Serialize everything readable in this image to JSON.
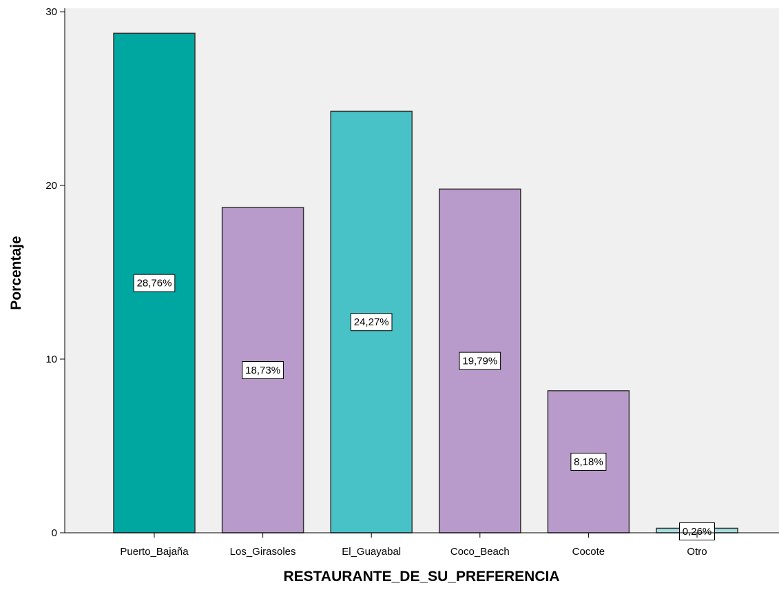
{
  "chart_data": {
    "type": "bar",
    "title": "",
    "xlabel": "RESTAURANTE_DE_SU_PREFERENCIA",
    "ylabel": "Porcentaje",
    "ylim": [
      0,
      30.2
    ],
    "yticks": [
      0,
      10,
      20,
      30
    ],
    "ytick_labels": [
      "0",
      "10",
      "20",
      "30"
    ],
    "grid": false,
    "legend": "none",
    "categories": [
      "Puerto_Bajaña",
      "Los_Girasoles",
      "El_Guayabal",
      "Coco_Beach",
      "Cocote",
      "Otro"
    ],
    "values": [
      28.76,
      18.73,
      24.27,
      19.79,
      8.18,
      0.26
    ],
    "data_labels": [
      "28,76%",
      "18,73%",
      "24,27%",
      "19,79%",
      "8,18%",
      "0,26%"
    ],
    "colors": [
      "#00a6a0",
      "#b89bcb",
      "#48c2c7",
      "#b89bcb",
      "#b89bcb",
      "#a8dde0"
    ]
  },
  "style": {
    "plot_background": "#f0f0f0",
    "page_background": "#ffffff",
    "bar_stroke": "#333333",
    "axis_color": "#000000"
  }
}
